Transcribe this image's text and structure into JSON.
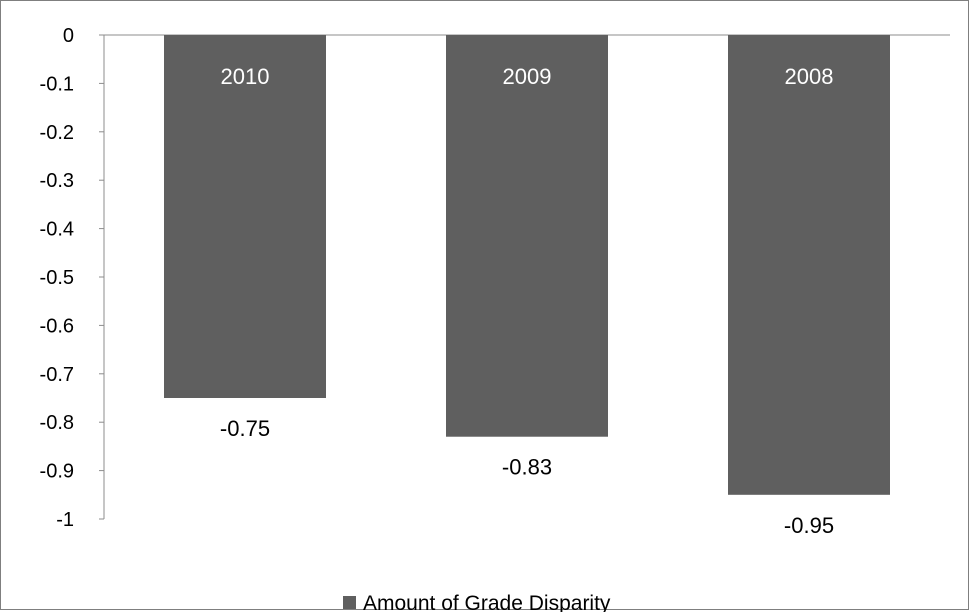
{
  "chart_data": {
    "type": "bar",
    "title": "",
    "xlabel": "",
    "ylabel": "",
    "categories": [
      "2010",
      "2009",
      "2008"
    ],
    "series": [
      {
        "name": "Amount of Grade Disparity",
        "values": [
          -0.75,
          -0.83,
          -0.95
        ],
        "color": "#5f5f5f"
      }
    ],
    "ylim": [
      -1,
      0
    ],
    "y_ticks": [
      "0",
      "-0.1",
      "-0.2",
      "-0.3",
      "-0.4",
      "-0.5",
      "-0.6",
      "-0.7",
      "-0.8",
      "-0.9",
      "-1"
    ],
    "data_labels": [
      "-0.75",
      "-0.83",
      "-0.95"
    ],
    "grid": false,
    "legend_position": "bottom",
    "axis_color": "#8c8c8c",
    "background_color": "#ffffff",
    "frame_color": "#7f7f7f"
  }
}
